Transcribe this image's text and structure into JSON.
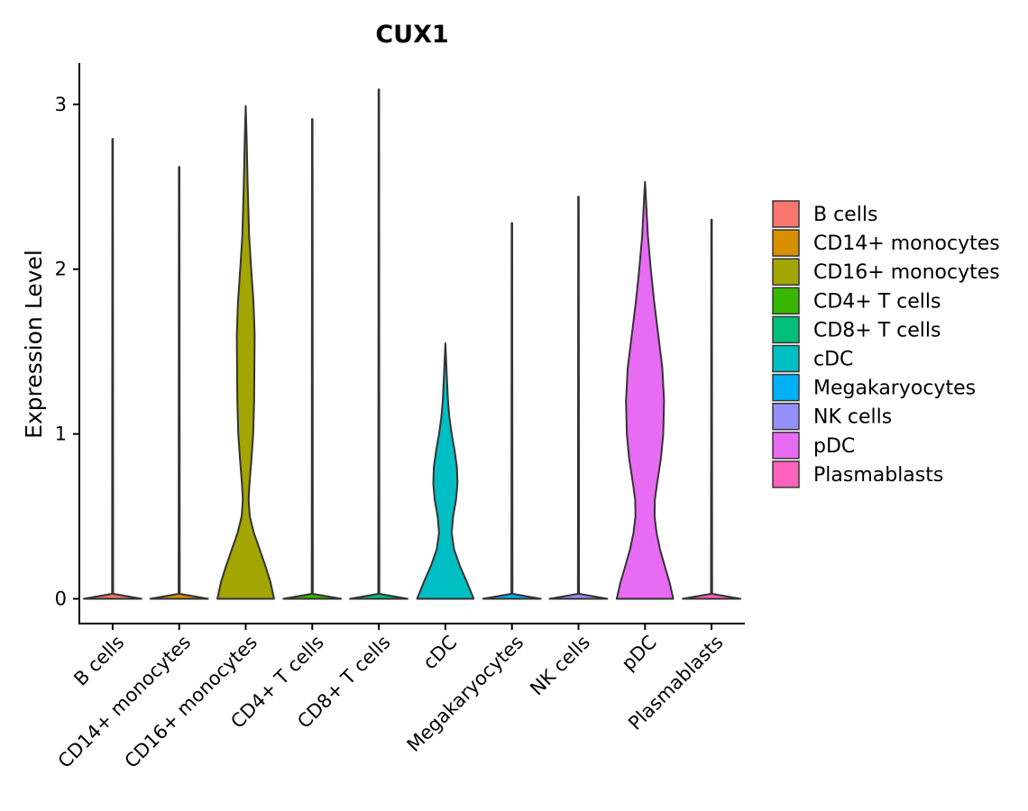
{
  "chart_data": {
    "type": "violin",
    "title": "CUX1",
    "xlabel": "",
    "ylabel": "Expression Level",
    "ylim": [
      -0.15,
      3.25
    ],
    "yticks": [
      0,
      1,
      2,
      3
    ],
    "ytick_labels": [
      "0",
      "1",
      "2",
      "3"
    ],
    "legend_position": "right",
    "categories": [
      "B cells",
      "CD14+ monocytes",
      "CD16+ monocytes",
      "CD4+ T cells",
      "CD8+ T cells",
      "cDC",
      "Megakaryocytes",
      "NK cells",
      "pDC",
      "Plasmablasts"
    ],
    "colors": [
      "#F8766D",
      "#D89000",
      "#A3A500",
      "#39B600",
      "#00BF7D",
      "#00BFC4",
      "#00B0F6",
      "#9590FF",
      "#E76BF3",
      "#FF62BC"
    ],
    "max_values": [
      2.79,
      2.62,
      2.99,
      2.91,
      3.09,
      1.55,
      2.28,
      2.44,
      2.53,
      2.3
    ],
    "density_profiles": [
      [
        [
          0,
          1.0
        ],
        [
          0.03,
          0.02
        ],
        [
          2.79,
          0.01
        ]
      ],
      [
        [
          0,
          1.0
        ],
        [
          0.03,
          0.02
        ],
        [
          2.62,
          0.01
        ]
      ],
      [
        [
          0,
          0.98
        ],
        [
          0.1,
          0.86
        ],
        [
          0.2,
          0.68
        ],
        [
          0.3,
          0.48
        ],
        [
          0.4,
          0.28
        ],
        [
          0.5,
          0.14
        ],
        [
          0.6,
          0.1
        ],
        [
          0.7,
          0.13
        ],
        [
          0.85,
          0.2
        ],
        [
          1.0,
          0.26
        ],
        [
          1.2,
          0.29
        ],
        [
          1.4,
          0.3
        ],
        [
          1.6,
          0.31
        ],
        [
          1.8,
          0.27
        ],
        [
          2.0,
          0.19
        ],
        [
          2.2,
          0.12
        ],
        [
          2.5,
          0.07
        ],
        [
          2.8,
          0.03
        ],
        [
          2.99,
          0.0
        ]
      ],
      [
        [
          0,
          1.0
        ],
        [
          0.03,
          0.02
        ],
        [
          2.91,
          0.01
        ]
      ],
      [
        [
          0,
          1.0
        ],
        [
          0.03,
          0.02
        ],
        [
          3.09,
          0.01
        ]
      ],
      [
        [
          0,
          0.98
        ],
        [
          0.1,
          0.75
        ],
        [
          0.2,
          0.5
        ],
        [
          0.3,
          0.3
        ],
        [
          0.4,
          0.22
        ],
        [
          0.5,
          0.27
        ],
        [
          0.6,
          0.37
        ],
        [
          0.7,
          0.42
        ],
        [
          0.8,
          0.4
        ],
        [
          0.9,
          0.32
        ],
        [
          1.0,
          0.22
        ],
        [
          1.1,
          0.14
        ],
        [
          1.2,
          0.09
        ],
        [
          1.35,
          0.05
        ],
        [
          1.55,
          0.0
        ]
      ],
      [
        [
          0,
          1.0
        ],
        [
          0.03,
          0.02
        ],
        [
          2.28,
          0.01
        ]
      ],
      [
        [
          0,
          1.0
        ],
        [
          0.03,
          0.02
        ],
        [
          2.44,
          0.01
        ]
      ],
      [
        [
          0,
          0.98
        ],
        [
          0.1,
          0.85
        ],
        [
          0.2,
          0.68
        ],
        [
          0.3,
          0.52
        ],
        [
          0.4,
          0.4
        ],
        [
          0.5,
          0.33
        ],
        [
          0.6,
          0.34
        ],
        [
          0.7,
          0.42
        ],
        [
          0.85,
          0.55
        ],
        [
          1.0,
          0.63
        ],
        [
          1.2,
          0.66
        ],
        [
          1.4,
          0.6
        ],
        [
          1.6,
          0.46
        ],
        [
          1.8,
          0.32
        ],
        [
          2.0,
          0.2
        ],
        [
          2.2,
          0.1
        ],
        [
          2.4,
          0.04
        ],
        [
          2.53,
          0.0
        ]
      ],
      [
        [
          0,
          1.0
        ],
        [
          0.03,
          0.02
        ],
        [
          2.3,
          0.01
        ]
      ]
    ]
  }
}
